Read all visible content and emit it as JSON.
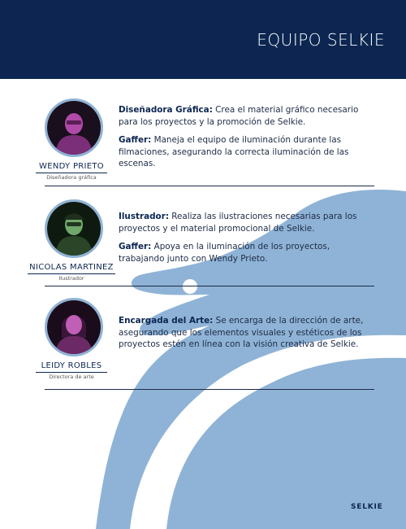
{
  "header": {
    "title": "EQUIPO SELKIE"
  },
  "members": [
    {
      "name": "WENDY PRIETO",
      "role": "Diseñadora gráfica",
      "paragraphs": [
        {
          "label": "Diseñadora Gráfica:",
          "text": " Crea el material gráfico necesario para los proyectos y la promoción de Selkie."
        },
        {
          "label": "Gaffer:",
          "text": " Maneja el equipo de iluminación durante las filmaciones, asegurando la correcta iluminación de las escenas."
        }
      ]
    },
    {
      "name": "NICOLAS MARTINEZ",
      "role": "Ilustrador",
      "paragraphs": [
        {
          "label": "Ilustrador:",
          "text": " Realiza las ilustraciones necesarias para los proyectos y el material promocional de Selkie."
        },
        {
          "label": "Gaffer:",
          "text": " Apoya en la iluminación de los proyectos, trabajando junto con Wendy Prieto."
        }
      ]
    },
    {
      "name": "LEIDY ROBLES",
      "role": "Directora de arte",
      "paragraphs": [
        {
          "label": "Encargada del Arte:",
          "text": " Se encarga de la dirección de arte, asegurando que los elementos visuales y estéticos de los proyectos estén en línea con la visión creativa de Selkie."
        }
      ]
    }
  ],
  "footer": {
    "logo": "SELKIE"
  },
  "colors": {
    "navy": "#0c2651",
    "seal": "#8fb3d6"
  }
}
